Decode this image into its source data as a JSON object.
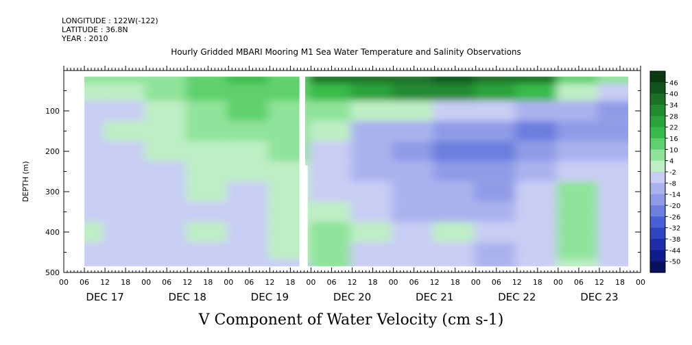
{
  "header": {
    "longitude": "LONGITUDE : 122W(-122)",
    "latitude": "LATITUDE : 36.8N",
    "year": "YEAR : 2010",
    "title": "Hourly Gridded MBARI Mooring M1 Sea Water Temperature and Salinity Observations"
  },
  "footer": {
    "caption": "V Component of Water Velocity (cm s-1)"
  },
  "chart_data": {
    "type": "heatmap",
    "title": "Hourly Gridded MBARI Mooring M1 Sea Water Temperature and Salinity Observations",
    "xlabel": "",
    "ylabel": "DEPTH (m)",
    "colorbar_label": "V Component of Water Velocity (cm s-1)",
    "y_inverted": true,
    "ylim": [
      500,
      0
    ],
    "y_ticks": [
      100,
      200,
      300,
      400,
      500
    ],
    "y_tick_labels": [
      "100",
      "200",
      "300",
      "400",
      "500"
    ],
    "x_hour_labels": [
      "00",
      "06",
      "12",
      "18",
      "00",
      "06",
      "12",
      "18",
      "00",
      "06",
      "12",
      "18",
      "00",
      "06",
      "12",
      "18",
      "00",
      "06",
      "12",
      "18",
      "00",
      "06",
      "12",
      "18",
      "00",
      "06",
      "12",
      "18",
      "00"
    ],
    "x_day_labels": [
      "DEC 17",
      "DEC 18",
      "DEC 19",
      "DEC 20",
      "DEC 21",
      "DEC 22",
      "DEC 23"
    ],
    "x_range_days": [
      0,
      7
    ],
    "data_extent": {
      "start_day": 0.25,
      "end_day": 6.85,
      "top_depth_m": 15,
      "bottom_depth_m": 485
    },
    "missing_data_gap": {
      "start_day": 2.86,
      "end_day": 2.93,
      "depth_from_m": 15,
      "depth_to_m": 485
    },
    "missing_data_gap_deep": {
      "start_day": 2.93,
      "end_day": 2.96,
      "depth_from_m": 235,
      "depth_to_m": 485
    },
    "colorbar_levels": [
      46,
      40,
      34,
      28,
      22,
      16,
      10,
      4,
      -2,
      -8,
      -14,
      -20,
      -26,
      -32,
      -38,
      -44,
      -50
    ],
    "colorbar_colors": [
      "#0b3a12",
      "#11551d",
      "#1a7026",
      "#218a30",
      "#29a33a",
      "#38bb4a",
      "#5fd06c",
      "#8fe39a",
      "#bdeec4",
      "#c9cdf4",
      "#aab2ee",
      "#8f9be6",
      "#6c7ede",
      "#4a5fd3",
      "#2f44c2",
      "#1d2da9",
      "#101c8c",
      "#09105f"
    ],
    "depth_samples_m": [
      15,
      50,
      100,
      150,
      200,
      250,
      300,
      350,
      400,
      450,
      485
    ],
    "column_time_days": [
      0.25,
      0.75,
      1.25,
      1.75,
      2.25,
      2.75,
      3.25,
      3.75,
      4.25,
      4.75,
      5.25,
      5.75,
      6.25,
      6.75
    ],
    "v_cm_s": [
      [
        4,
        6,
        8,
        14,
        16,
        12,
        34,
        36,
        38,
        40,
        36,
        34,
        10,
        6
      ],
      [
        0,
        2,
        4,
        12,
        14,
        10,
        20,
        26,
        30,
        28,
        26,
        20,
        2,
        -4
      ],
      [
        -6,
        -4,
        -2,
        8,
        10,
        8,
        6,
        2,
        -2,
        -6,
        -8,
        -10,
        -14,
        -16
      ],
      [
        -4,
        -2,
        0,
        6,
        4,
        6,
        2,
        -10,
        -14,
        -18,
        -20,
        -22,
        -20,
        -18
      ],
      [
        -6,
        -4,
        -2,
        2,
        0,
        4,
        -4,
        -12,
        -16,
        -22,
        -24,
        -18,
        -14,
        -10
      ],
      [
        -8,
        -6,
        -4,
        0,
        -2,
        2,
        -6,
        -10,
        -14,
        -16,
        -18,
        -12,
        -4,
        -6
      ],
      [
        -6,
        -8,
        -6,
        -2,
        -4,
        0,
        -8,
        -6,
        -12,
        -14,
        -16,
        -8,
        4,
        -8
      ],
      [
        -4,
        -6,
        -8,
        -4,
        -6,
        -2,
        2,
        -4,
        -10,
        -10,
        -12,
        -6,
        6,
        -6
      ],
      [
        -2,
        -4,
        -6,
        -2,
        -4,
        0,
        6,
        -2,
        -6,
        2,
        -8,
        -4,
        6,
        -4
      ],
      [
        -4,
        -6,
        -8,
        -6,
        -4,
        -2,
        8,
        -4,
        -8,
        -6,
        -10,
        -6,
        4,
        -6
      ],
      [
        -6,
        -8,
        -6,
        -4,
        -6,
        -4,
        6,
        -6,
        -8,
        -8,
        -10,
        -8,
        2,
        -8
      ]
    ]
  }
}
